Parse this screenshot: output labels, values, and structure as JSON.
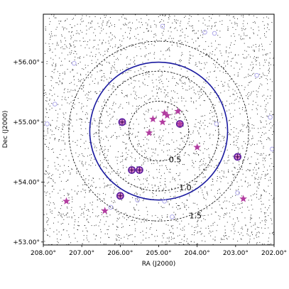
{
  "chart_data": {
    "type": "scatter",
    "title": "",
    "xlabel": "RA (J2000)",
    "ylabel": "Dec (J2000)",
    "xlim": [
      208.0,
      202.0
    ],
    "ylim": [
      52.95,
      56.8
    ],
    "x_ticks": [
      208.0,
      207.0,
      206.0,
      205.0,
      204.0,
      203.0,
      202.0
    ],
    "x_tick_labels": [
      "208.00°",
      "207.00°",
      "206.00°",
      "205.00°",
      "204.00°",
      "203.00°",
      "202.00°"
    ],
    "y_ticks": [
      53.0,
      54.0,
      55.0,
      56.0
    ],
    "y_tick_labels": [
      "+53.00°",
      "+54.00°",
      "+55.00°",
      "+56.00°"
    ],
    "center": {
      "ra": 205.0,
      "dec": 54.85
    },
    "rings": [
      {
        "radius_deg": 0.5,
        "label": "0.5",
        "style": "dashed"
      },
      {
        "radius_deg": 1.0,
        "label": "1.0",
        "style": "dashed"
      },
      {
        "radius_deg": 1.5,
        "label": "1.5",
        "style": "dashed"
      }
    ],
    "highlight_circle": {
      "radius_deg": 1.15,
      "color": "#1a1aa0"
    },
    "background_points_count": 3200,
    "stars": [
      {
        "ra": 205.15,
        "dec": 55.05
      },
      {
        "ra": 204.85,
        "dec": 55.15
      },
      {
        "ra": 204.78,
        "dec": 55.11
      },
      {
        "ra": 204.5,
        "dec": 55.18
      },
      {
        "ra": 204.9,
        "dec": 55.0
      },
      {
        "ra": 205.25,
        "dec": 54.82
      },
      {
        "ra": 204.45,
        "dec": 54.97
      },
      {
        "ra": 204.0,
        "dec": 54.58
      },
      {
        "ra": 207.4,
        "dec": 53.68
      },
      {
        "ra": 206.4,
        "dec": 53.52
      },
      {
        "ra": 202.8,
        "dec": 53.72
      }
    ],
    "circled_targets": [
      {
        "ra": 205.95,
        "dec": 55.0
      },
      {
        "ra": 204.45,
        "dec": 54.97
      },
      {
        "ra": 205.7,
        "dec": 54.2
      },
      {
        "ra": 205.5,
        "dec": 54.2
      },
      {
        "ra": 202.95,
        "dec": 54.42
      },
      {
        "ra": 206.0,
        "dec": 53.77
      }
    ],
    "open_circles": [
      {
        "ra": 204.9,
        "dec": 56.6
      },
      {
        "ra": 203.8,
        "dec": 56.5
      },
      {
        "ra": 203.55,
        "dec": 56.48
      },
      {
        "ra": 207.2,
        "dec": 55.98
      },
      {
        "ra": 202.45,
        "dec": 55.78
      },
      {
        "ra": 207.7,
        "dec": 55.3
      },
      {
        "ra": 202.1,
        "dec": 55.08
      },
      {
        "ra": 207.9,
        "dec": 54.97
      },
      {
        "ra": 203.5,
        "dec": 54.97
      },
      {
        "ra": 202.05,
        "dec": 54.55
      },
      {
        "ra": 202.95,
        "dec": 53.82
      },
      {
        "ra": 204.85,
        "dec": 53.68
      },
      {
        "ra": 205.55,
        "dec": 53.7
      },
      {
        "ra": 206.25,
        "dec": 53.58
      },
      {
        "ra": 204.65,
        "dec": 53.42
      }
    ],
    "colors": {
      "star": "#b23ca0",
      "target_ring": "#5a1aa0",
      "open_circle": "#a7a0e8",
      "points": "#303030"
    }
  }
}
